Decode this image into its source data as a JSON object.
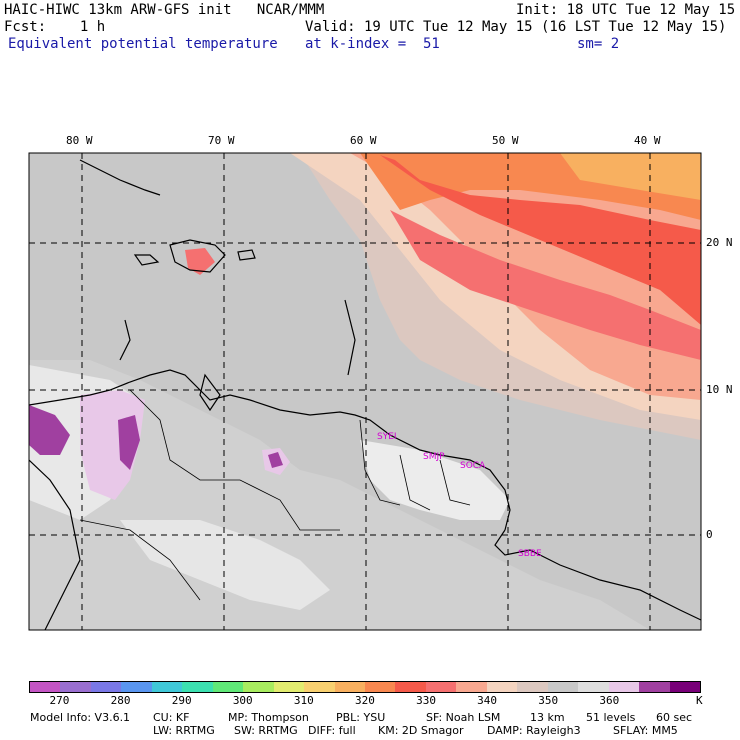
{
  "header": {
    "line1_left": "HAIC-HIWC 13km ARW-GFS init   NCAR/MMM",
    "line1_right": "Init: 18 UTC Tue 12 May 15",
    "line2_left": "Fcst:    1 h",
    "line2_right": "Valid: 19 UTC Tue 12 May 15 (16 LST Tue 12 May 15)",
    "line3_left": "Equivalent potential temperature",
    "line3_mid": "at k-index =  51",
    "line3_right": "sm= 2"
  },
  "map": {
    "lon_labels": [
      "80 W",
      "70 W",
      "60 W",
      "50 W",
      "40 W"
    ],
    "lat_labels": [
      "20 N",
      "10 N",
      "0"
    ],
    "stations": [
      "SYEI",
      "SMJP",
      "SOCA",
      "SBBE"
    ]
  },
  "colorbar": {
    "colors": [
      "#c455c4",
      "#9a6fd0",
      "#7a78e6",
      "#5a96f0",
      "#40c8d8",
      "#3ce0b0",
      "#60e878",
      "#a8ec60",
      "#e2ec70",
      "#f8d070",
      "#f8b060",
      "#f88850",
      "#f55a4a",
      "#f57070",
      "#f8a890",
      "#f4d4c0",
      "#dcc8c0",
      "#c8c8c8",
      "#dedede",
      "#e8c8e8",
      "#a040a0",
      "#780078"
    ],
    "tick_labels": [
      "270",
      "280",
      "290",
      "300",
      "310",
      "320",
      "330",
      "340",
      "350",
      "360"
    ],
    "unit": "K"
  },
  "footer": {
    "line1": [
      "Model Info: V3.6.1",
      "CU: KF",
      "MP: Thompson",
      "PBL: YSU",
      "SF: Noah LSM",
      "13 km",
      "51 levels",
      "60 sec"
    ],
    "line2": [
      "LW: RRTMG",
      "SW: RRTMG",
      "DIFF: full",
      "KM: 2D Smagor",
      "DAMP: Rayleigh3",
      "SFLAY: MM5"
    ]
  }
}
